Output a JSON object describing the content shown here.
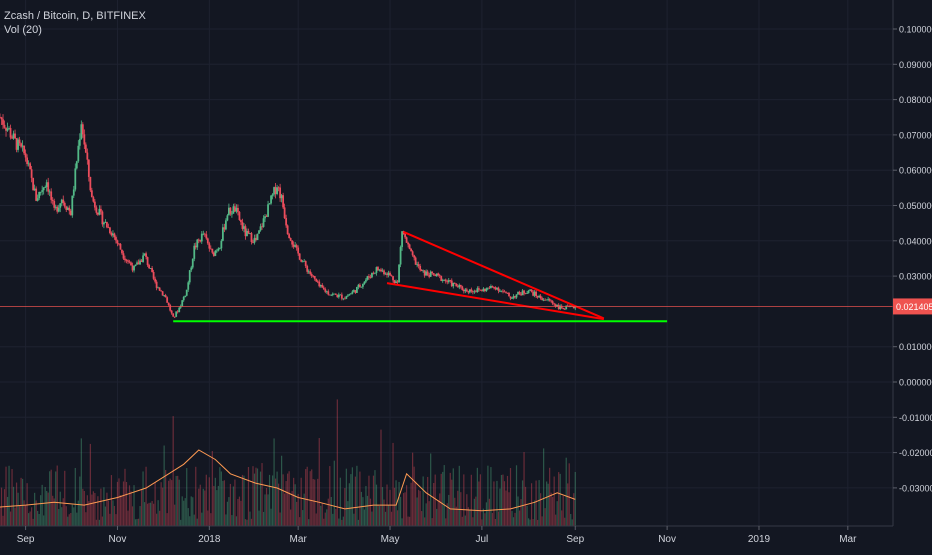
{
  "header": {
    "symbol_line": "Zcash / Bitcoin, D, BITFINEX",
    "indicator_line": "Vol (20)"
  },
  "price_axis": {
    "ticks": [
      "0.100000",
      "0.090000",
      "0.080000",
      "0.070000",
      "0.060000",
      "0.050000",
      "0.040000",
      "0.030000",
      "0.010000",
      "0.000000",
      "-0.010000",
      "-0.020000",
      "-0.030000"
    ],
    "last_price_label": "0.021405"
  },
  "time_axis": {
    "labels": [
      "Sep",
      "Nov",
      "2018",
      "Mar",
      "May",
      "Jul",
      "Sep",
      "Nov",
      "2019",
      "Mar"
    ]
  },
  "colors": {
    "background": "#131722",
    "up_candle": "#53b987",
    "down_candle": "#eb4d5c",
    "trendline": "#ff0000",
    "support_line": "#00ff00",
    "volume_ma": "#ff9a52",
    "last_price": "#ef5350",
    "axis_text": "#d1d4dc"
  },
  "chart_data": {
    "type": "candlestick",
    "title": "Zcash / Bitcoin, D, BITFINEX",
    "indicator": "Vol (20)",
    "y_scale": "linear",
    "ylim": [
      -0.037,
      0.105
    ],
    "x_range": [
      "2017-08-15",
      "2019-03-31"
    ],
    "grid": true,
    "last_price": 0.021405,
    "price_series": {
      "name": "ZEC/BTC close (approx.)",
      "x": [
        "2017-08-15",
        "2017-08-20",
        "2017-08-25",
        "2017-09-01",
        "2017-09-08",
        "2017-09-15",
        "2017-09-20",
        "2017-09-25",
        "2017-10-01",
        "2017-10-08",
        "2017-10-15",
        "2017-10-22",
        "2017-10-29",
        "2017-11-05",
        "2017-11-12",
        "2017-11-19",
        "2017-11-26",
        "2017-12-03",
        "2017-12-08",
        "2017-12-12",
        "2017-12-17",
        "2017-12-22",
        "2017-12-28",
        "2018-01-03",
        "2018-01-08",
        "2018-01-13",
        "2018-01-18",
        "2018-01-25",
        "2018-02-01",
        "2018-02-08",
        "2018-02-15",
        "2018-02-18",
        "2018-02-22",
        "2018-02-28",
        "2018-03-07",
        "2018-03-15",
        "2018-03-22",
        "2018-04-01",
        "2018-04-08",
        "2018-04-15",
        "2018-04-22",
        "2018-04-29",
        "2018-05-06",
        "2018-05-09",
        "2018-05-15",
        "2018-05-22",
        "2018-06-01",
        "2018-06-10",
        "2018-06-20",
        "2018-07-01",
        "2018-07-10",
        "2018-07-20",
        "2018-08-01",
        "2018-08-08",
        "2018-08-15",
        "2018-08-22",
        "2018-08-29",
        "2018-09-01"
      ],
      "y": [
        0.075,
        0.072,
        0.068,
        0.064,
        0.052,
        0.057,
        0.048,
        0.052,
        0.048,
        0.074,
        0.052,
        0.046,
        0.042,
        0.036,
        0.032,
        0.036,
        0.028,
        0.024,
        0.018,
        0.021,
        0.026,
        0.038,
        0.042,
        0.036,
        0.039,
        0.048,
        0.049,
        0.042,
        0.04,
        0.048,
        0.056,
        0.052,
        0.043,
        0.037,
        0.032,
        0.027,
        0.025,
        0.024,
        0.026,
        0.029,
        0.032,
        0.031,
        0.028,
        0.043,
        0.036,
        0.031,
        0.03,
        0.028,
        0.026,
        0.026,
        0.027,
        0.024,
        0.026,
        0.024,
        0.023,
        0.021,
        0.021,
        0.0214
      ]
    },
    "annotations": [
      {
        "type": "trendline",
        "name": "falling wedge upper",
        "from": [
          "2018-05-10",
          0.0425
        ],
        "to": [
          "2018-09-20",
          0.018
        ]
      },
      {
        "type": "trendline",
        "name": "falling wedge lower",
        "from": [
          "2018-04-29",
          0.028
        ],
        "to": [
          "2018-09-20",
          0.0178
        ]
      },
      {
        "type": "horizontal_line",
        "name": "support",
        "from": "2017-12-08",
        "to": "2018-11-01",
        "y": 0.0172
      },
      {
        "type": "horizontal_line",
        "name": "last price",
        "y": 0.021405
      }
    ],
    "volume_ma": {
      "name": "Vol (20)",
      "x": [
        "2017-08-15",
        "2017-09-01",
        "2017-09-20",
        "2017-10-10",
        "2017-11-01",
        "2017-11-20",
        "2017-12-05",
        "2017-12-15",
        "2017-12-25",
        "2018-01-05",
        "2018-01-15",
        "2018-02-01",
        "2018-02-15",
        "2018-03-01",
        "2018-03-15",
        "2018-04-01",
        "2018-04-20",
        "2018-05-05",
        "2018-05-12",
        "2018-05-25",
        "2018-06-10",
        "2018-07-01",
        "2018-07-20",
        "2018-08-05",
        "2018-08-20",
        "2018-09-01"
      ],
      "relative_level": [
        0.2,
        0.22,
        0.25,
        0.22,
        0.3,
        0.4,
        0.55,
        0.65,
        0.8,
        0.7,
        0.55,
        0.45,
        0.4,
        0.3,
        0.25,
        0.18,
        0.22,
        0.22,
        0.55,
        0.35,
        0.18,
        0.16,
        0.18,
        0.25,
        0.35,
        0.28
      ]
    }
  }
}
